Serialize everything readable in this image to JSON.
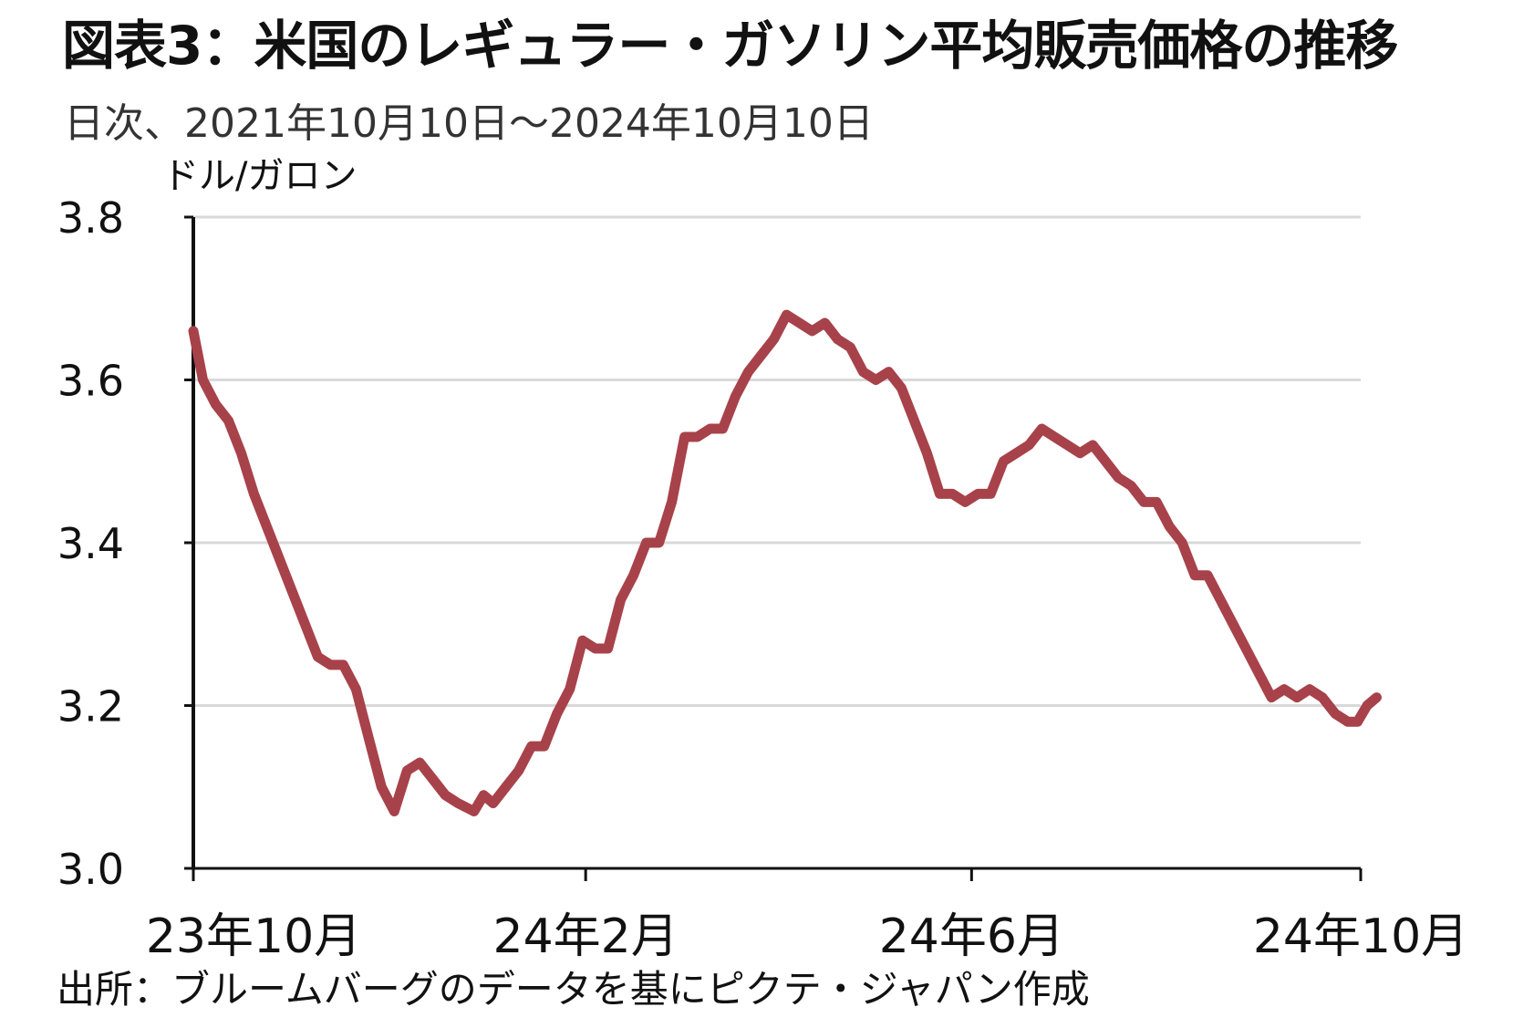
{
  "title": "図表3：米国のレギュラー・ガソリン平均販売価格の推移",
  "subtitle": "日次、2021年10月10日～2024年10月10日",
  "source": "出所：ブルームバーグのデータを基にピクテ・ジャパン作成",
  "colors": {
    "line": "#a8424a",
    "grid": "#d9d9d9",
    "axis": "#111111"
  },
  "chart_data": {
    "type": "line",
    "title": "図表3：米国のレギュラー・ガソリン平均販売価格の推移",
    "subtitle": "日次、2021年10月10日～2024年10月10日",
    "ylabel": "ドル/ガロン",
    "xlabel": "",
    "ylim": [
      3.0,
      3.8
    ],
    "yticks": [
      3.0,
      3.2,
      3.4,
      3.6,
      3.8
    ],
    "ytick_labels": [
      "3.0",
      "3.2",
      "3.4",
      "3.6",
      "3.8"
    ],
    "xticks": [
      "2023-10-01",
      "2024-02-01",
      "2024-06-01",
      "2024-10-01"
    ],
    "xtick_labels": [
      "23年10月",
      "24年2月",
      "24年6月",
      "24年10月"
    ],
    "grid": "horizontal",
    "legend": "none",
    "series": [
      {
        "color": "#a8424a",
        "x": [
          "2023-10-01",
          "2023-10-04",
          "2023-10-08",
          "2023-10-12",
          "2023-10-16",
          "2023-10-20",
          "2023-10-24",
          "2023-10-28",
          "2023-11-01",
          "2023-11-05",
          "2023-11-09",
          "2023-11-13",
          "2023-11-17",
          "2023-11-21",
          "2023-11-25",
          "2023-11-29",
          "2023-12-03",
          "2023-12-07",
          "2023-12-11",
          "2023-12-15",
          "2023-12-19",
          "2023-12-23",
          "2023-12-28",
          "2023-12-31",
          "2024-01-03",
          "2024-01-07",
          "2024-01-11",
          "2024-01-15",
          "2024-01-19",
          "2024-01-23",
          "2024-01-27",
          "2024-01-31",
          "2024-02-04",
          "2024-02-08",
          "2024-02-12",
          "2024-02-16",
          "2024-02-20",
          "2024-02-24",
          "2024-02-28",
          "2024-03-03",
          "2024-03-07",
          "2024-03-11",
          "2024-03-15",
          "2024-03-19",
          "2024-03-23",
          "2024-03-27",
          "2024-03-31",
          "2024-04-04",
          "2024-04-08",
          "2024-04-12",
          "2024-04-16",
          "2024-04-20",
          "2024-04-24",
          "2024-04-28",
          "2024-05-02",
          "2024-05-06",
          "2024-05-10",
          "2024-05-14",
          "2024-05-18",
          "2024-05-22",
          "2024-05-26",
          "2024-05-30",
          "2024-06-03",
          "2024-06-07",
          "2024-06-11",
          "2024-06-15",
          "2024-06-19",
          "2024-06-23",
          "2024-06-27",
          "2024-07-01",
          "2024-07-05",
          "2024-07-09",
          "2024-07-13",
          "2024-07-17",
          "2024-07-21",
          "2024-07-25",
          "2024-07-29",
          "2024-08-02",
          "2024-08-06",
          "2024-08-10",
          "2024-08-14",
          "2024-08-18",
          "2024-08-22",
          "2024-08-26",
          "2024-08-30",
          "2024-09-03",
          "2024-09-07",
          "2024-09-11",
          "2024-09-15",
          "2024-09-19",
          "2024-09-23",
          "2024-09-27",
          "2024-09-30",
          "2024-10-03",
          "2024-10-06"
        ],
        "values": [
          3.66,
          3.6,
          3.57,
          3.55,
          3.51,
          3.46,
          3.42,
          3.38,
          3.34,
          3.3,
          3.26,
          3.25,
          3.25,
          3.22,
          3.16,
          3.1,
          3.07,
          3.12,
          3.13,
          3.11,
          3.09,
          3.08,
          3.07,
          3.09,
          3.08,
          3.1,
          3.12,
          3.15,
          3.15,
          3.19,
          3.22,
          3.28,
          3.27,
          3.27,
          3.33,
          3.36,
          3.4,
          3.4,
          3.45,
          3.53,
          3.53,
          3.54,
          3.54,
          3.58,
          3.61,
          3.63,
          3.65,
          3.68,
          3.67,
          3.66,
          3.67,
          3.65,
          3.64,
          3.61,
          3.6,
          3.61,
          3.59,
          3.55,
          3.51,
          3.46,
          3.46,
          3.45,
          3.46,
          3.46,
          3.5,
          3.51,
          3.52,
          3.54,
          3.53,
          3.52,
          3.51,
          3.52,
          3.5,
          3.48,
          3.47,
          3.45,
          3.45,
          3.42,
          3.4,
          3.36,
          3.36,
          3.33,
          3.3,
          3.27,
          3.24,
          3.21,
          3.22,
          3.21,
          3.22,
          3.21,
          3.19,
          3.18,
          3.18,
          3.2,
          3.21
        ]
      }
    ]
  }
}
